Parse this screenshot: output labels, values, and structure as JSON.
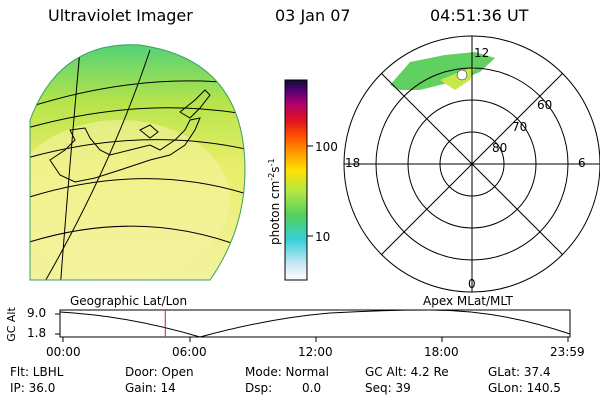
{
  "header": {
    "instrument": "Ultraviolet Imager",
    "date": "03 Jan 07",
    "time": "04:51:36 UT"
  },
  "colorbar": {
    "label": "photon cm",
    "label_sup1": "-2",
    "label_mid": "s",
    "label_sup2": "-1",
    "ticks": [
      "100",
      "10"
    ],
    "tick_values": [
      100,
      10
    ]
  },
  "polar_plot": {
    "mlt_labels": {
      "top": "12",
      "left": "18",
      "right": "6",
      "bottom": "0"
    },
    "lat_labels": [
      "60",
      "70",
      "80"
    ],
    "lat_values": [
      60,
      70,
      80
    ]
  },
  "alt_plot": {
    "ylabel": "GC Alt",
    "yticks": [
      "9.0",
      "1.8"
    ],
    "left_label": "Geographic Lat/Lon",
    "right_label": "Apex MLat/MLT",
    "xticks": [
      "00:00",
      "06:00",
      "12:00",
      "18:00",
      "23:59"
    ],
    "current_time_hours": 4.86
  },
  "status": {
    "flt": "Flt: LBHL",
    "ip": "IP: 36.0",
    "door": "Door: Open",
    "gain": "Gain: 14",
    "mode": "Mode: Normal",
    "dsp_label": "Dsp:",
    "dsp_value": "0.0",
    "gc_alt": "GC Alt: 4.2 Re",
    "seq": "Seq: 39",
    "glat": "GLat:  37.4",
    "glon": "GLon: 140.5"
  },
  "colors": {
    "marker": "#cc2222",
    "dim_image": "#f2f28a"
  }
}
